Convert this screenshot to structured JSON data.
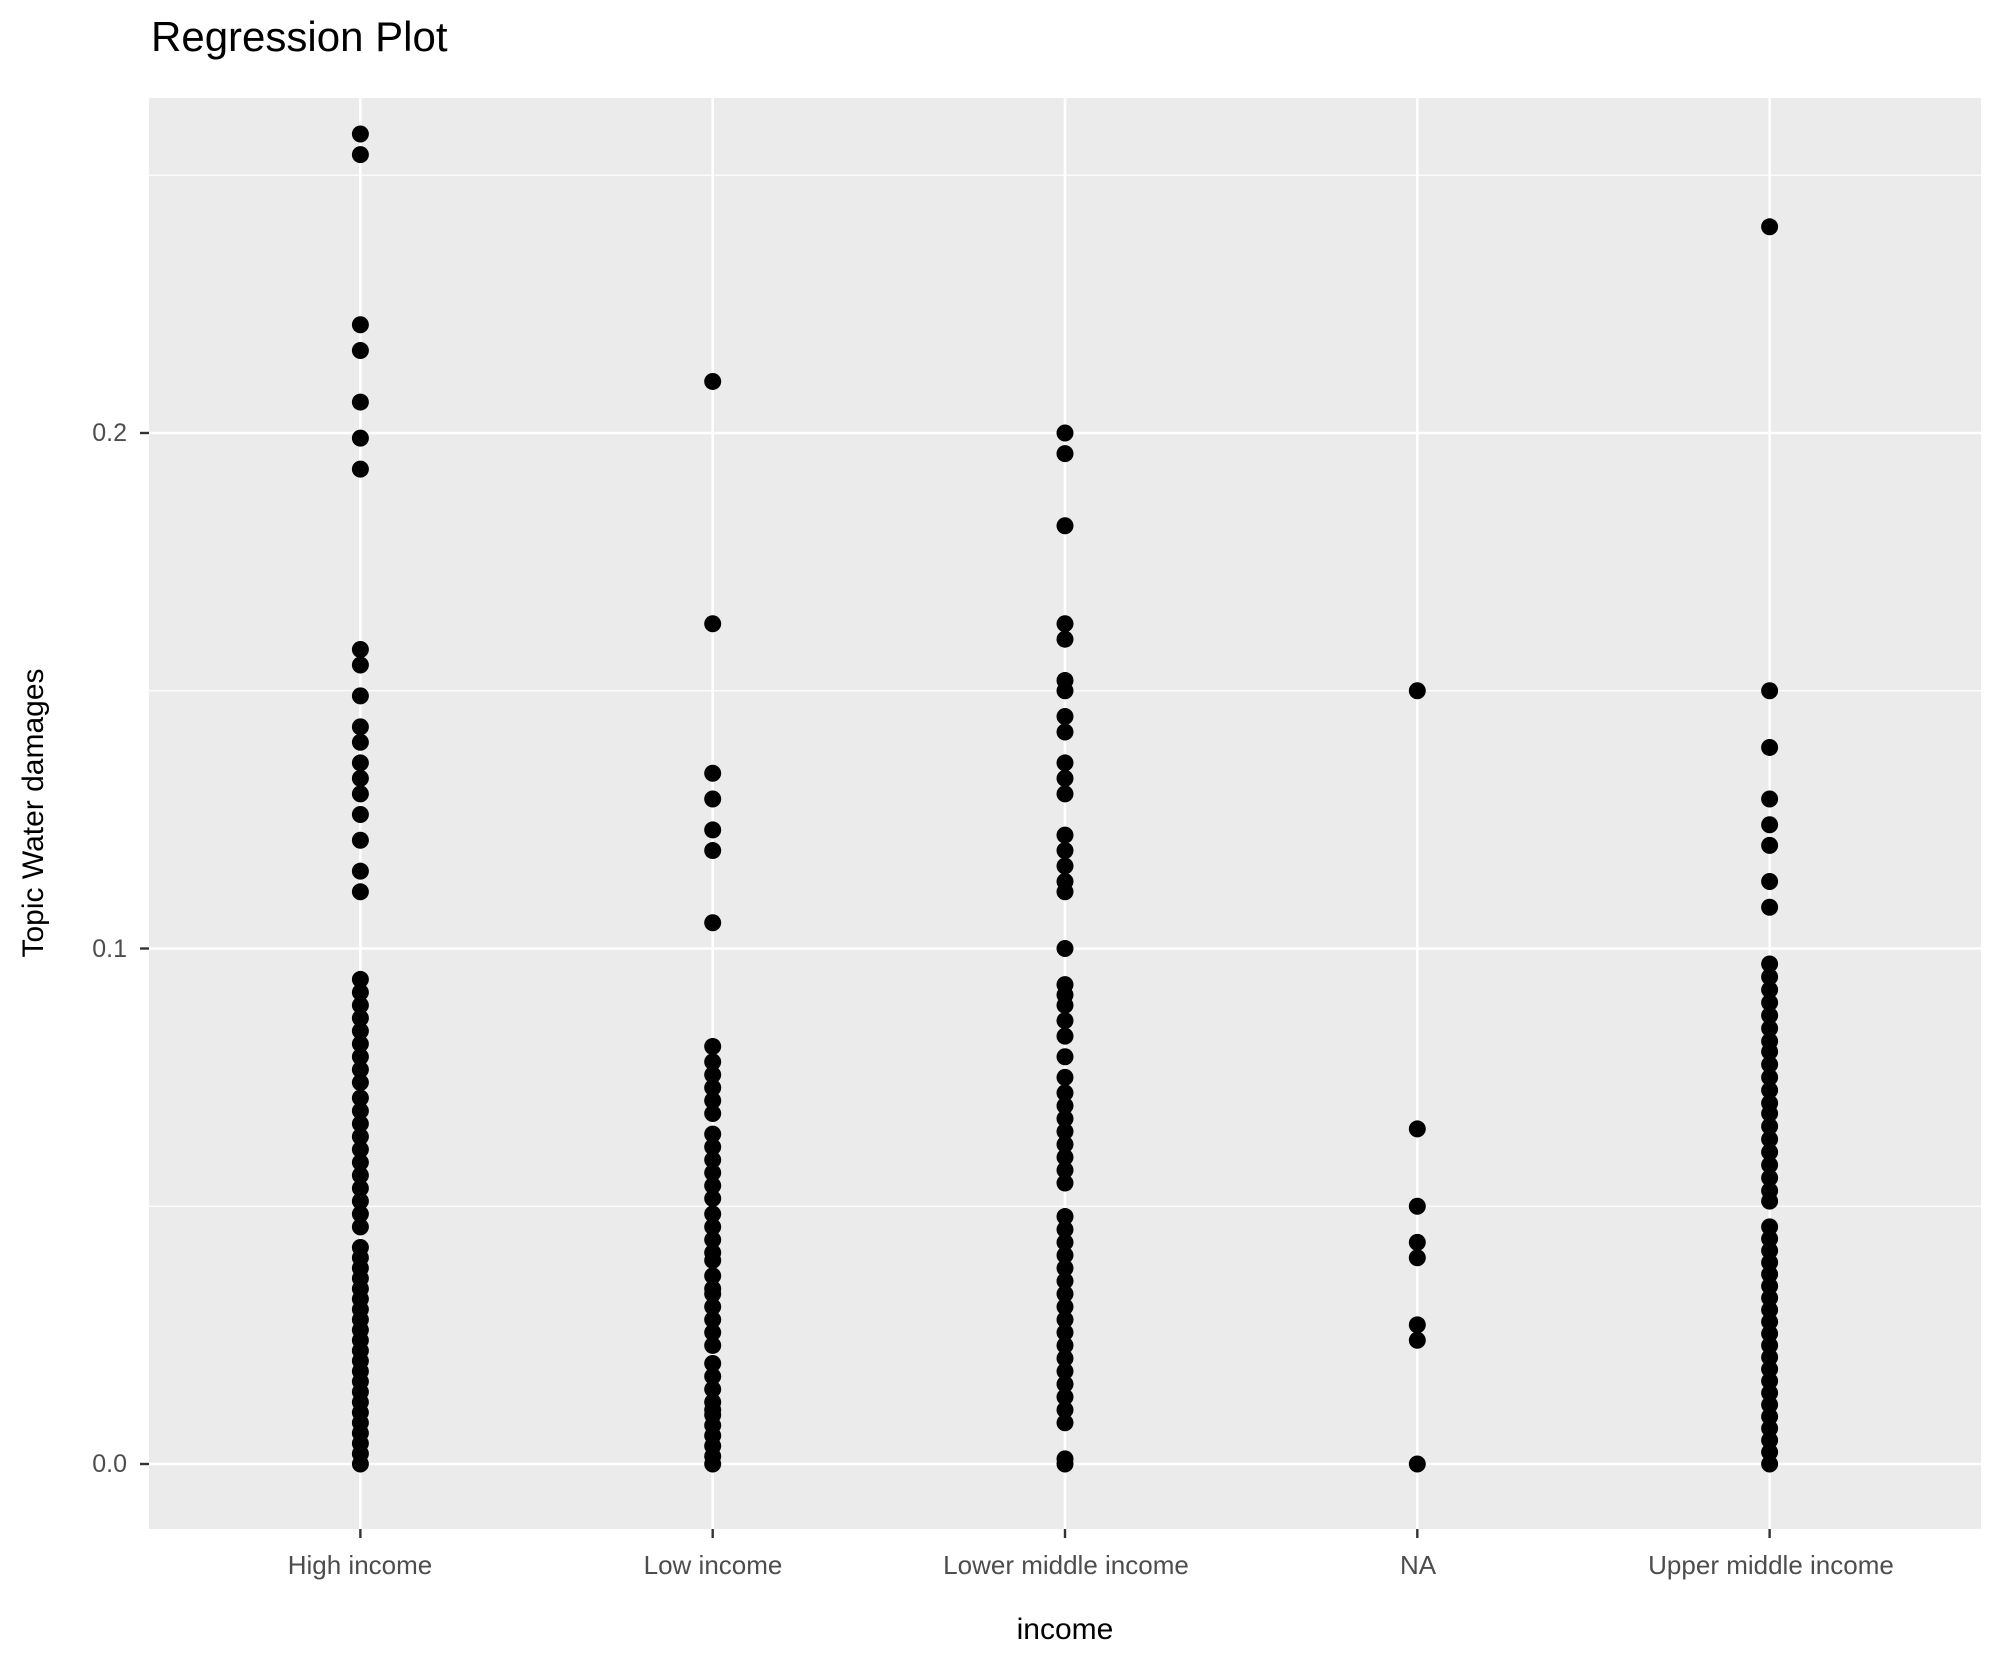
{
  "title": "Regression Plot",
  "chart_data": {
    "type": "scatter",
    "subtype": "strip-plot",
    "title": "Regression Plot",
    "xlabel": "income",
    "ylabel": "Topic Water damages",
    "grid": "on",
    "legend": "none",
    "panel_bg_color": "#EBEBEB",
    "grid_color": "#FFFFFF",
    "point_color": "#000000",
    "tick_label_color": "#4D4D4D",
    "tick_mark_color": "#333333",
    "ylim": [
      -0.013,
      0.2655
    ],
    "yticks": [
      {
        "label": "0.0",
        "value": 0.0
      },
      {
        "label": "0.1",
        "value": 0.1
      },
      {
        "label": "0.2",
        "value": 0.2
      }
    ],
    "y_minor_gridlines": [
      0.05,
      0.15,
      0.25
    ],
    "categories": [
      "High income",
      "Low income",
      "Lower middle income",
      "NA",
      "Upper middle income"
    ],
    "series": [
      {
        "name": "High income",
        "values": [
          0.258,
          0.254,
          0.221,
          0.216,
          0.206,
          0.199,
          0.193,
          0.158,
          0.155,
          0.149,
          0.143,
          0.14,
          0.136,
          0.133,
          0.13,
          0.126,
          0.121,
          0.115,
          0.111,
          0.094,
          0.0915,
          0.089,
          0.0865,
          0.084,
          0.0815,
          0.079,
          0.0765,
          0.074,
          0.071,
          0.0685,
          0.066,
          0.0635,
          0.061,
          0.0585,
          0.056,
          0.0535,
          0.051,
          0.0485,
          0.046,
          0.042,
          0.04,
          0.038,
          0.036,
          0.034,
          0.032,
          0.03,
          0.028,
          0.026,
          0.024,
          0.022,
          0.02,
          0.018,
          0.016,
          0.014,
          0.012,
          0.01,
          0.008,
          0.006,
          0.004,
          0.002,
          0.0
        ]
      },
      {
        "name": "Low income",
        "values": [
          0.21,
          0.163,
          0.134,
          0.129,
          0.123,
          0.119,
          0.105,
          0.081,
          0.078,
          0.0755,
          0.073,
          0.0705,
          0.068,
          0.064,
          0.0615,
          0.059,
          0.0565,
          0.054,
          0.0515,
          0.0485,
          0.046,
          0.0435,
          0.041,
          0.0395,
          0.0365,
          0.034,
          0.033,
          0.0305,
          0.028,
          0.0255,
          0.023,
          0.0195,
          0.017,
          0.0145,
          0.012,
          0.0105,
          0.0095,
          0.0075,
          0.0055,
          0.0035,
          0.0015,
          0.0
        ]
      },
      {
        "name": "Lower middle income",
        "values": [
          0.2,
          0.196,
          0.182,
          0.163,
          0.16,
          0.152,
          0.15,
          0.145,
          0.142,
          0.136,
          0.133,
          0.13,
          0.122,
          0.119,
          0.116,
          0.113,
          0.111,
          0.1,
          0.093,
          0.091,
          0.089,
          0.086,
          0.083,
          0.079,
          0.075,
          0.072,
          0.0695,
          0.067,
          0.0645,
          0.062,
          0.0595,
          0.057,
          0.0545,
          0.048,
          0.0455,
          0.043,
          0.0405,
          0.038,
          0.0355,
          0.033,
          0.0305,
          0.028,
          0.0255,
          0.023,
          0.0205,
          0.018,
          0.0155,
          0.013,
          0.0105,
          0.008,
          0.001,
          0.0
        ]
      },
      {
        "name": "NA",
        "values": [
          0.15,
          0.065,
          0.05,
          0.043,
          0.04,
          0.027,
          0.024,
          0.0
        ]
      },
      {
        "name": "Upper middle income",
        "values": [
          0.24,
          0.15,
          0.139,
          0.129,
          0.124,
          0.12,
          0.113,
          0.108,
          0.097,
          0.0945,
          0.092,
          0.0895,
          0.087,
          0.0845,
          0.082,
          0.08,
          0.0775,
          0.075,
          0.0725,
          0.07,
          0.068,
          0.0655,
          0.063,
          0.0605,
          0.058,
          0.0555,
          0.053,
          0.051,
          0.046,
          0.0437,
          0.0414,
          0.0391,
          0.0368,
          0.0345,
          0.0322,
          0.0299,
          0.0276,
          0.0253,
          0.023,
          0.0207,
          0.0184,
          0.0161,
          0.0138,
          0.0115,
          0.0092,
          0.0069,
          0.0046,
          0.0023,
          0.0
        ]
      }
    ]
  }
}
